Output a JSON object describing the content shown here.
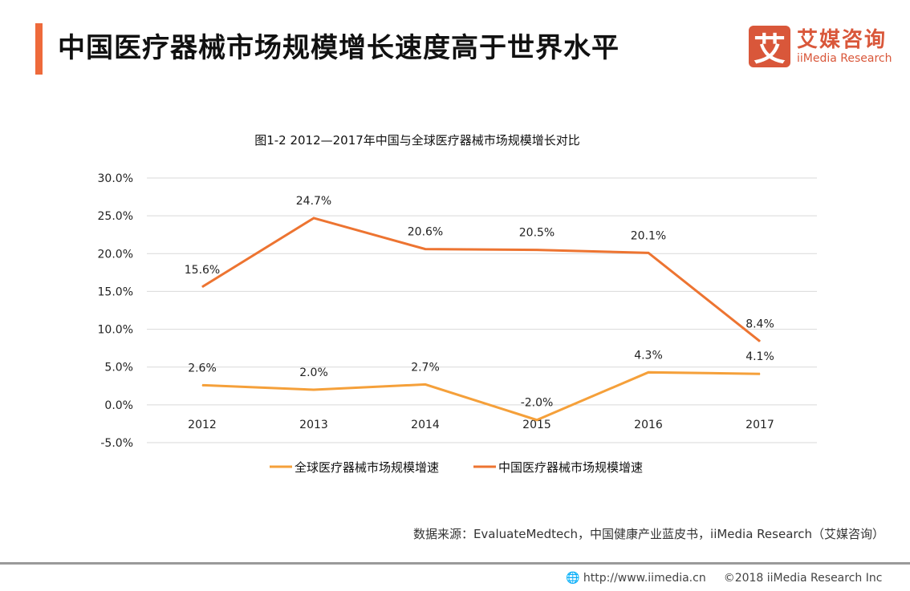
{
  "header": {
    "title": "中国医疗器械市场规模增长速度高于世界水平"
  },
  "logo": {
    "mark": "艾",
    "cn": "艾媒咨询",
    "en": "iiMedia Research"
  },
  "source": "数据来源：EvaluateMedtech，中国健康产业蓝皮书，iiMedia Research（艾媒咨询）",
  "footer": {
    "url": "http://www.iimedia.cn",
    "copyright": "©2018  iiMedia Research  Inc"
  },
  "chart_data": {
    "type": "line",
    "title": "图1-2 2012—2017年中国与全球医疗器械市场规模增长对比",
    "categories": [
      "2012",
      "2013",
      "2014",
      "2015",
      "2016",
      "2017"
    ],
    "ylim": [
      -5,
      30
    ],
    "yticks": [
      "-5.0%",
      "0.0%",
      "5.0%",
      "10.0%",
      "15.0%",
      "20.0%",
      "25.0%",
      "30.0%"
    ],
    "grid": true,
    "legend_position": "bottom",
    "series": [
      {
        "name": "全球医疗器械市场规模增速",
        "color": "#f5a03a",
        "values": [
          2.6,
          2.0,
          2.7,
          -2.0,
          4.3,
          4.1
        ],
        "labels": [
          "2.6%",
          "2.0%",
          "2.7%",
          "-2.0%",
          "4.3%",
          "4.1%"
        ]
      },
      {
        "name": "中国医疗器械市场规模增速",
        "color": "#ed7431",
        "values": [
          15.6,
          24.7,
          20.6,
          20.5,
          20.1,
          8.4
        ],
        "labels": [
          "15.6%",
          "24.7%",
          "20.6%",
          "20.5%",
          "20.1%",
          "8.4%"
        ]
      }
    ]
  }
}
